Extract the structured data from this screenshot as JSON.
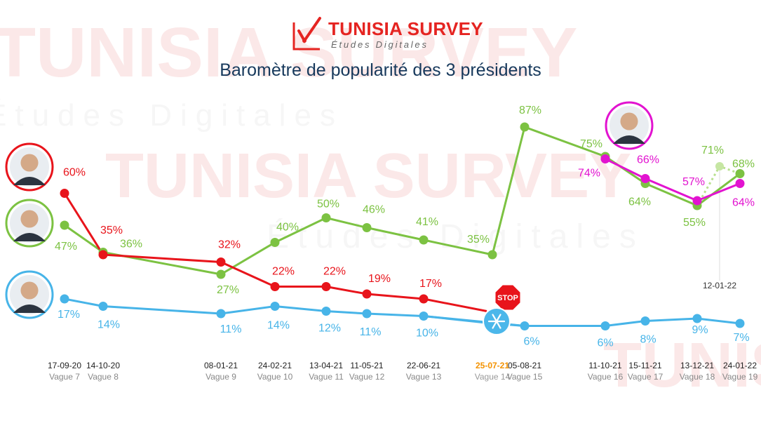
{
  "brand": {
    "name": "TUNISIA SURVEY",
    "subtitle": "Études Digitales"
  },
  "chart_data": {
    "type": "line",
    "title": "Baromètre de popularité des 3 présidents",
    "categories": [
      "17-09-20",
      "14-10-20",
      "08-01-21",
      "24-02-21",
      "13-04-21",
      "11-05-21",
      "22-06-21",
      "25-07-21",
      "05-08-21",
      "11-10-21",
      "15-11-21",
      "13-12-21",
      "24-01-22"
    ],
    "waves": [
      "Vague 7",
      "Vague 8",
      "Vague 9",
      "Vague 10",
      "Vague 11",
      "Vague 12",
      "Vague 13",
      "Vague 14",
      "Vague 15",
      "Vague 16",
      "Vague 17",
      "Vague 18",
      "Vague 19"
    ],
    "highlight_category": "25-07-21",
    "extra_date_label": "12-01-22",
    "value_suffix": "%",
    "series": [
      {
        "color": "#7cc242",
        "values": [
          47,
          36,
          27,
          40,
          50,
          46,
          41,
          35,
          87,
          75,
          64,
          55,
          68
        ],
        "extra_point": {
          "date": "12-01-22",
          "value": 71
        }
      },
      {
        "color": "#e8141b",
        "values": [
          60,
          35,
          32,
          22,
          22,
          19,
          17,
          null,
          null,
          null,
          null,
          null,
          null
        ]
      },
      {
        "color": "#47b4e8",
        "values": [
          17,
          14,
          11,
          14,
          12,
          11,
          10,
          null,
          6,
          6,
          8,
          9,
          7
        ]
      },
      {
        "color": "#e213d0",
        "values": [
          null,
          null,
          null,
          null,
          null,
          null,
          null,
          null,
          null,
          74,
          66,
          57,
          64
        ]
      }
    ],
    "markers": {
      "stop_label": "STOP"
    }
  },
  "colors": {
    "title": "#17395c",
    "highlight": "#f39200",
    "brand": "#e52421"
  },
  "icons": [
    "tunisia-survey-logo-icon",
    "stop-sign-icon",
    "snowflake-icon",
    "president-portrait-icon"
  ]
}
